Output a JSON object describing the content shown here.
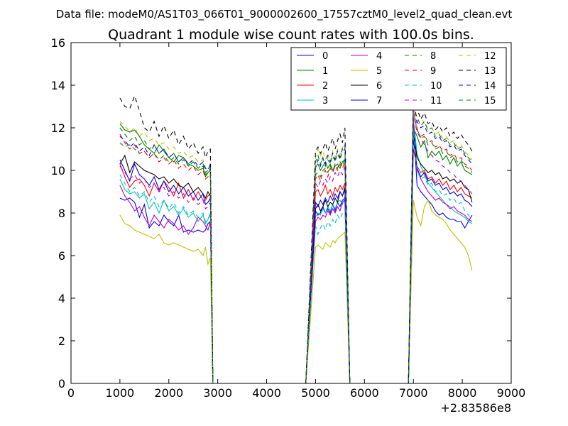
{
  "figure": {
    "suptitle": "Data file: modeM0/AS1T03_066T01_9000002600_17557cztM0_level2_quad_clean.evt"
  },
  "chart_data": {
    "type": "line",
    "title": "Quadrant 1 module wise count rates with 100.0s bins.",
    "xlabel": "",
    "ylabel": "",
    "x_offset_label": "+2.83586e8",
    "xlim": [
      0,
      9000
    ],
    "ylim": [
      0,
      16
    ],
    "xticks": [
      "0",
      "1000",
      "2000",
      "3000",
      "4000",
      "5000",
      "6000",
      "7000",
      "8000",
      "9000"
    ],
    "yticks": [
      "0",
      "2",
      "4",
      "6",
      "8",
      "10",
      "12",
      "14",
      "16"
    ],
    "grid": false,
    "legend_position": "top-right",
    "legend_columns": 4,
    "series": [
      {
        "name": "0",
        "color": "#0000ff",
        "dash": "solid",
        "seg1": [
          8.7,
          8.6,
          8.7,
          8.5,
          7.8,
          8.4,
          7.3,
          7.6,
          7.4,
          7.9,
          7.6,
          7.4,
          7.9,
          7.1,
          7.2,
          7.1,
          7.2,
          7.1,
          7.5,
          7.6,
          7.2
        ],
        "seg2": [
          8.1,
          7.9,
          8.0,
          8.3,
          8.0,
          8.2,
          8.0,
          8.4,
          8.1,
          8.5,
          8.3,
          8.6,
          8.7
        ],
        "seg3": [
          12.2,
          9.3,
          9.0,
          8.8,
          8.6,
          8.4,
          8.1,
          7.9,
          8.0,
          7.8,
          7.7,
          7.7,
          7.6,
          7.6,
          7.3,
          7.6,
          7.9
        ]
      },
      {
        "name": "1",
        "color": "#008000",
        "dash": "solid",
        "seg1": [
          12.2,
          11.9,
          11.8,
          11.9,
          11.6,
          11.2,
          11.0,
          10.8,
          11.2,
          10.9,
          10.6,
          10.4,
          10.7,
          10.6,
          10.3,
          10.2,
          10.0,
          10.1,
          9.9,
          10.0,
          9.7
        ],
        "seg2": [
          10.2,
          10.3,
          10.0,
          10.2,
          10.4,
          10.1,
          10.3,
          10.0,
          10.2,
          10.3,
          10.1,
          10.4,
          10.5
        ],
        "seg3": [
          12.0,
          11.6,
          11.1,
          11.4,
          10.6,
          10.9,
          10.7,
          10.9,
          10.5,
          10.7,
          10.3,
          10.6,
          10.2,
          10.4,
          10.0,
          9.9,
          9.8
        ]
      },
      {
        "name": "2",
        "color": "#ff0000",
        "dash": "solid",
        "seg1": [
          10.3,
          9.7,
          9.2,
          9.5,
          9.6,
          9.3,
          8.8,
          9.4,
          9.0,
          9.5,
          9.2,
          8.8,
          9.4,
          8.7,
          9.1,
          8.6,
          9.0,
          8.6,
          8.8,
          8.9,
          8.6
        ],
        "seg2": [
          9.0,
          9.1,
          8.8,
          9.0,
          9.3,
          8.9,
          9.1,
          8.8,
          9.2,
          9.0,
          9.3,
          9.1,
          9.4
        ],
        "seg3": [
          11.0,
          10.2,
          9.9,
          10.0,
          9.6,
          9.7,
          9.4,
          9.6,
          9.3,
          9.5,
          9.1,
          9.3,
          9.0,
          9.2,
          8.9,
          8.8,
          8.7
        ]
      },
      {
        "name": "3",
        "color": "#00bfbf",
        "dash": "solid",
        "seg1": [
          9.6,
          9.1,
          8.9,
          9.0,
          8.7,
          8.9,
          8.2,
          8.5,
          8.0,
          8.6,
          8.1,
          8.3,
          7.9,
          8.2,
          7.8,
          8.0,
          7.6,
          7.9,
          7.7,
          8.0,
          7.5
        ],
        "seg2": [
          7.8,
          8.0,
          7.9,
          8.2,
          8.0,
          8.3,
          8.1,
          8.4,
          8.2,
          8.5,
          8.6,
          8.4,
          8.8
        ],
        "seg3": [
          12.4,
          10.8,
          10.2,
          9.8,
          9.4,
          9.2,
          9.0,
          8.8,
          8.6,
          8.4,
          8.3,
          8.1,
          8.0,
          7.9,
          7.8,
          7.6,
          7.5
        ]
      },
      {
        "name": "4",
        "color": "#bf00bf",
        "dash": "solid",
        "seg1": [
          9.3,
          8.8,
          8.5,
          8.1,
          8.3,
          7.8,
          7.4,
          7.9,
          7.6,
          7.3,
          7.7,
          7.5,
          7.2,
          7.4,
          7.0,
          7.3,
          7.8,
          7.6,
          7.2,
          7.6,
          7.4
        ],
        "seg2": [
          7.6,
          7.8,
          7.7,
          7.9,
          7.8,
          8.1,
          7.9,
          8.2,
          8.0,
          8.3,
          8.1,
          8.5,
          8.6
        ],
        "seg3": [
          12.4,
          10.0,
          9.6,
          9.3,
          9.0,
          8.8,
          8.6,
          8.7,
          8.5,
          8.4,
          8.2,
          8.3,
          8.1,
          8.0,
          7.9,
          7.7,
          7.6
        ]
      },
      {
        "name": "5",
        "color": "#bfbf00",
        "dash": "solid",
        "seg1": [
          7.9,
          7.5,
          7.4,
          7.2,
          7.1,
          7.0,
          6.9,
          6.8,
          7.0,
          6.6,
          6.5,
          6.6,
          6.5,
          6.4,
          6.3,
          6.2,
          6.3,
          6.0,
          5.6,
          5.9,
          6.4
        ],
        "seg2": [
          6.4,
          6.5,
          6.4,
          6.3,
          6.6,
          6.5,
          6.4,
          6.7,
          6.6,
          6.8,
          6.9,
          7.0,
          7.1
        ],
        "seg3": [
          8.6,
          7.8,
          7.4,
          8.3,
          8.6,
          8.1,
          7.9,
          7.8,
          7.7,
          7.5,
          7.2,
          7.0,
          6.8,
          6.6,
          6.4,
          6.0,
          5.3
        ]
      },
      {
        "name": "6",
        "color": "#000000",
        "dash": "solid",
        "seg1": [
          10.3,
          10.7,
          9.9,
          10.4,
          10.2,
          10.0,
          9.9,
          9.8,
          9.6,
          9.7,
          9.4,
          9.6,
          9.3,
          9.2,
          9.4,
          9.0,
          9.2,
          8.9,
          9.0,
          8.8,
          8.7
        ],
        "seg2": [
          8.2,
          8.4,
          8.1,
          8.3,
          8.6,
          8.3,
          8.5,
          8.4,
          8.7,
          8.5,
          9.0,
          8.8,
          9.2
        ],
        "seg3": [
          11.8,
          10.6,
          10.3,
          10.1,
          9.9,
          10.0,
          9.8,
          9.9,
          9.6,
          9.7,
          9.5,
          9.6,
          9.4,
          9.5,
          9.2,
          9.1,
          8.5
        ]
      },
      {
        "name": "7",
        "color": "#0000ff",
        "dash": "solid",
        "seg1": [
          10.5,
          10.0,
          9.5,
          10.3,
          9.8,
          9.6,
          9.3,
          9.7,
          9.1,
          9.5,
          9.0,
          9.3,
          8.9,
          9.2,
          8.8,
          9.0,
          8.6,
          8.9,
          8.5,
          8.7,
          8.4
        ],
        "seg2": [
          8.5,
          8.3,
          8.6,
          8.4,
          8.7,
          8.5,
          8.8,
          8.6,
          8.9,
          8.7,
          9.0,
          8.8,
          9.1
        ],
        "seg3": [
          11.5,
          10.1,
          9.7,
          9.9,
          9.5,
          9.6,
          9.3,
          9.4,
          9.1,
          9.2,
          8.9,
          9.0,
          8.8,
          8.9,
          8.6,
          8.5,
          8.3
        ]
      },
      {
        "name": "8",
        "color": "#008000",
        "dash": "dashed",
        "seg1": [
          11.3,
          11.1,
          11.2,
          11.0,
          10.8,
          10.9,
          10.6,
          10.8,
          10.5,
          10.7,
          10.4,
          10.6,
          10.3,
          10.5,
          10.2,
          10.4,
          10.1,
          10.3,
          10.0,
          10.1,
          9.9
        ],
        "seg2": [
          9.8,
          9.9,
          9.7,
          10.0,
          10.1,
          9.9,
          10.2,
          10.0,
          10.3,
          10.1,
          10.4,
          10.2,
          10.6
        ],
        "seg3": [
          12.6,
          11.8,
          11.5,
          11.6,
          11.2,
          11.3,
          11.0,
          11.1,
          10.8,
          10.9,
          10.6,
          10.7,
          10.4,
          10.5,
          10.2,
          10.1,
          9.9
        ]
      },
      {
        "name": "9",
        "color": "#ff0000",
        "dash": "dashed",
        "seg1": [
          11.7,
          11.3,
          11.0,
          11.2,
          10.8,
          10.9,
          10.6,
          10.8,
          10.4,
          10.6,
          10.3,
          10.5,
          10.1,
          10.3,
          10.0,
          10.2,
          9.8,
          10.0,
          9.7,
          9.9,
          9.6
        ],
        "seg2": [
          9.6,
          9.8,
          9.5,
          9.9,
          10.0,
          9.7,
          10.1,
          9.9,
          10.2,
          10.0,
          10.3,
          10.1,
          10.4
        ],
        "seg3": [
          12.8,
          11.9,
          11.6,
          11.7,
          11.3,
          11.4,
          11.1,
          11.2,
          10.9,
          11.0,
          10.7,
          10.8,
          10.5,
          10.6,
          10.3,
          10.2,
          10.0
        ]
      },
      {
        "name": "10",
        "color": "#00bfbf",
        "dash": "dashed",
        "seg1": [
          9.8,
          9.4,
          9.0,
          9.2,
          8.8,
          9.0,
          8.5,
          8.8,
          8.3,
          8.6,
          8.2,
          8.5,
          8.0,
          8.3,
          7.9,
          8.1,
          7.8,
          8.0,
          7.7,
          7.9,
          7.6
        ],
        "seg2": [
          7.4,
          7.0,
          7.3,
          7.5,
          7.2,
          7.6,
          7.4,
          7.7,
          7.5,
          7.9,
          7.7,
          8.0,
          8.2
        ],
        "seg3": [
          11.9,
          10.0,
          9.6,
          9.7,
          9.3,
          9.4,
          9.0,
          9.1,
          8.8,
          8.9,
          8.6,
          8.7,
          8.4,
          8.5,
          8.1,
          7.9,
          7.7
        ]
      },
      {
        "name": "11",
        "color": "#bf00bf",
        "dash": "dashed",
        "seg1": [
          10.2,
          9.9,
          9.6,
          9.8,
          9.4,
          9.6,
          9.2,
          9.4,
          9.0,
          9.2,
          8.8,
          9.0,
          8.7,
          8.9,
          8.5,
          8.7,
          8.4,
          8.6,
          8.3,
          8.5,
          8.2
        ],
        "seg2": [
          9.4,
          9.2,
          9.5,
          9.3,
          9.6,
          9.4,
          9.7,
          9.5,
          9.9,
          9.7,
          10.0,
          9.8,
          10.2
        ],
        "seg3": [
          13.2,
          12.0,
          11.5,
          11.2,
          10.9,
          10.7,
          10.5,
          10.4,
          10.2,
          10.1,
          9.9,
          9.8,
          9.6,
          9.5,
          9.3,
          9.1,
          8.9
        ]
      },
      {
        "name": "12",
        "color": "#bfbf00",
        "dash": "dashed",
        "seg1": [
          12.3,
          12.1,
          11.8,
          12.0,
          11.6,
          11.8,
          11.4,
          11.5,
          11.2,
          11.3,
          11.0,
          11.1,
          10.8,
          10.9,
          10.6,
          10.7,
          10.4,
          10.5,
          10.2,
          10.3,
          10.1
        ],
        "seg2": [
          10.6,
          11.0,
          10.7,
          10.9,
          10.5,
          10.8,
          10.4,
          10.9,
          10.6,
          11.0,
          10.7,
          11.1,
          11.2
        ],
        "seg3": [
          13.5,
          12.8,
          12.5,
          12.2,
          11.9,
          12.0,
          11.7,
          11.8,
          11.5,
          11.6,
          11.3,
          11.4,
          11.1,
          11.2,
          10.9,
          10.7,
          10.5
        ]
      },
      {
        "name": "13",
        "color": "#000000",
        "dash": "dashed",
        "seg1": [
          13.4,
          13.0,
          12.9,
          13.5,
          12.8,
          12.0,
          11.8,
          12.3,
          11.6,
          12.1,
          11.5,
          11.9,
          11.2,
          11.6,
          11.0,
          11.3,
          10.8,
          11.1,
          10.9,
          11.0,
          10.6
        ],
        "seg2": [
          10.9,
          11.1,
          10.8,
          11.0,
          11.3,
          10.9,
          11.2,
          11.5,
          11.0,
          11.4,
          11.7,
          11.3,
          12.0
        ],
        "seg3": [
          13.6,
          12.9,
          12.4,
          12.7,
          12.2,
          12.3,
          11.9,
          12.1,
          11.8,
          12.0,
          11.6,
          11.8,
          11.5,
          11.7,
          11.4,
          11.2,
          10.9
        ]
      },
      {
        "name": "14",
        "color": "#0000ff",
        "dash": "dashed",
        "seg1": [
          11.6,
          11.4,
          11.1,
          11.3,
          10.9,
          11.1,
          10.7,
          11.2,
          10.8,
          11.0,
          10.6,
          10.8,
          10.4,
          10.6,
          10.3,
          10.5,
          10.2,
          10.4,
          10.0,
          10.3,
          10.1
        ],
        "seg2": [
          10.1,
          10.5,
          10.2,
          10.6,
          10.3,
          10.7,
          10.4,
          10.8,
          10.5,
          10.9,
          10.6,
          11.0,
          11.2
        ],
        "seg3": [
          13.3,
          12.3,
          12.0,
          12.1,
          11.7,
          11.8,
          11.5,
          11.6,
          11.3,
          11.4,
          11.1,
          11.2,
          10.9,
          11.0,
          10.7,
          10.5,
          10.3
        ]
      },
      {
        "name": "15",
        "color": "#008000",
        "dash": "dashed",
        "seg1": [
          12.0,
          11.7,
          11.4,
          11.6,
          11.2,
          11.4,
          11.0,
          11.2,
          10.8,
          11.0,
          10.6,
          10.8,
          10.4,
          10.6,
          10.2,
          10.4,
          10.1,
          10.2,
          9.9,
          10.1,
          9.8
        ],
        "seg2": [
          10.4,
          10.7,
          10.3,
          10.6,
          10.2,
          10.5,
          10.3,
          10.7,
          10.4,
          10.8,
          10.5,
          10.9,
          11.0
        ],
        "seg3": [
          13.0,
          12.5,
          12.1,
          12.3,
          11.9,
          12.0,
          11.6,
          11.7,
          11.4,
          11.5,
          11.2,
          11.3,
          11.0,
          11.1,
          10.8,
          10.6,
          10.4
        ]
      }
    ],
    "segment_x": {
      "seg1": [
        1000,
        1100,
        1200,
        1300,
        1400,
        1500,
        1600,
        1700,
        1800,
        1900,
        2000,
        2100,
        2200,
        2300,
        2400,
        2500,
        2600,
        2700,
        2800,
        2850,
        2750
      ],
      "seg2": [
        5000,
        5050,
        5100,
        5150,
        5200,
        5250,
        5300,
        5350,
        5400,
        5450,
        5500,
        5550,
        5600
      ],
      "seg3": [
        7000,
        7075,
        7150,
        7225,
        7300,
        7375,
        7450,
        7525,
        7600,
        7675,
        7750,
        7825,
        7900,
        7975,
        8050,
        8125,
        8200
      ]
    },
    "zero_x": [
      2900,
      4800,
      5700,
      6900
    ]
  }
}
